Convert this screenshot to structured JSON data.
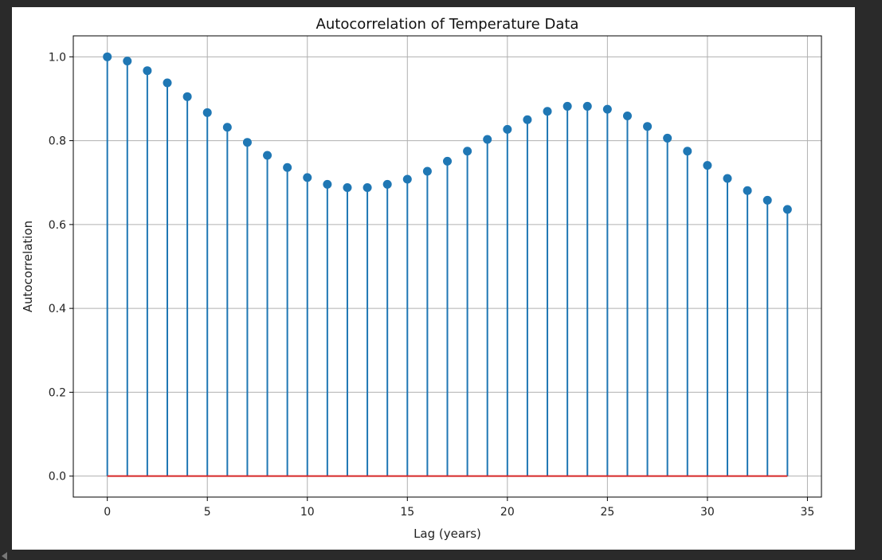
{
  "chart_data": {
    "type": "stem",
    "title": "Autocorrelation of Temperature Data",
    "xlabel": "Lag (years)",
    "ylabel": "Autocorrelation",
    "x": [
      0,
      1,
      2,
      3,
      4,
      5,
      6,
      7,
      8,
      9,
      10,
      11,
      12,
      13,
      14,
      15,
      16,
      17,
      18,
      19,
      20,
      21,
      22,
      23,
      24,
      25,
      26,
      27,
      28,
      29,
      30,
      31,
      32,
      33,
      34
    ],
    "values": [
      1.0,
      0.99,
      0.967,
      0.938,
      0.905,
      0.867,
      0.832,
      0.796,
      0.765,
      0.736,
      0.712,
      0.696,
      0.688,
      0.688,
      0.696,
      0.708,
      0.727,
      0.751,
      0.775,
      0.803,
      0.827,
      0.85,
      0.87,
      0.882,
      0.882,
      0.875,
      0.859,
      0.834,
      0.806,
      0.775,
      0.741,
      0.71,
      0.681,
      0.658,
      0.636
    ],
    "xlim": [
      -1.7,
      35.7
    ],
    "ylim": [
      -0.05,
      1.05
    ],
    "xticks": [
      0,
      5,
      10,
      15,
      20,
      25,
      30,
      35
    ],
    "yticks": [
      0.0,
      0.2,
      0.4,
      0.6,
      0.8,
      1.0
    ],
    "xtick_labels": [
      "0",
      "5",
      "10",
      "15",
      "20",
      "25",
      "30",
      "35"
    ],
    "ytick_labels": [
      "0.0",
      "0.2",
      "0.4",
      "0.6",
      "0.8",
      "1.0"
    ],
    "grid": true,
    "stem_color": "#1f77b4",
    "baseline_color": "#d62728",
    "grid_color": "#b0b0b0"
  }
}
